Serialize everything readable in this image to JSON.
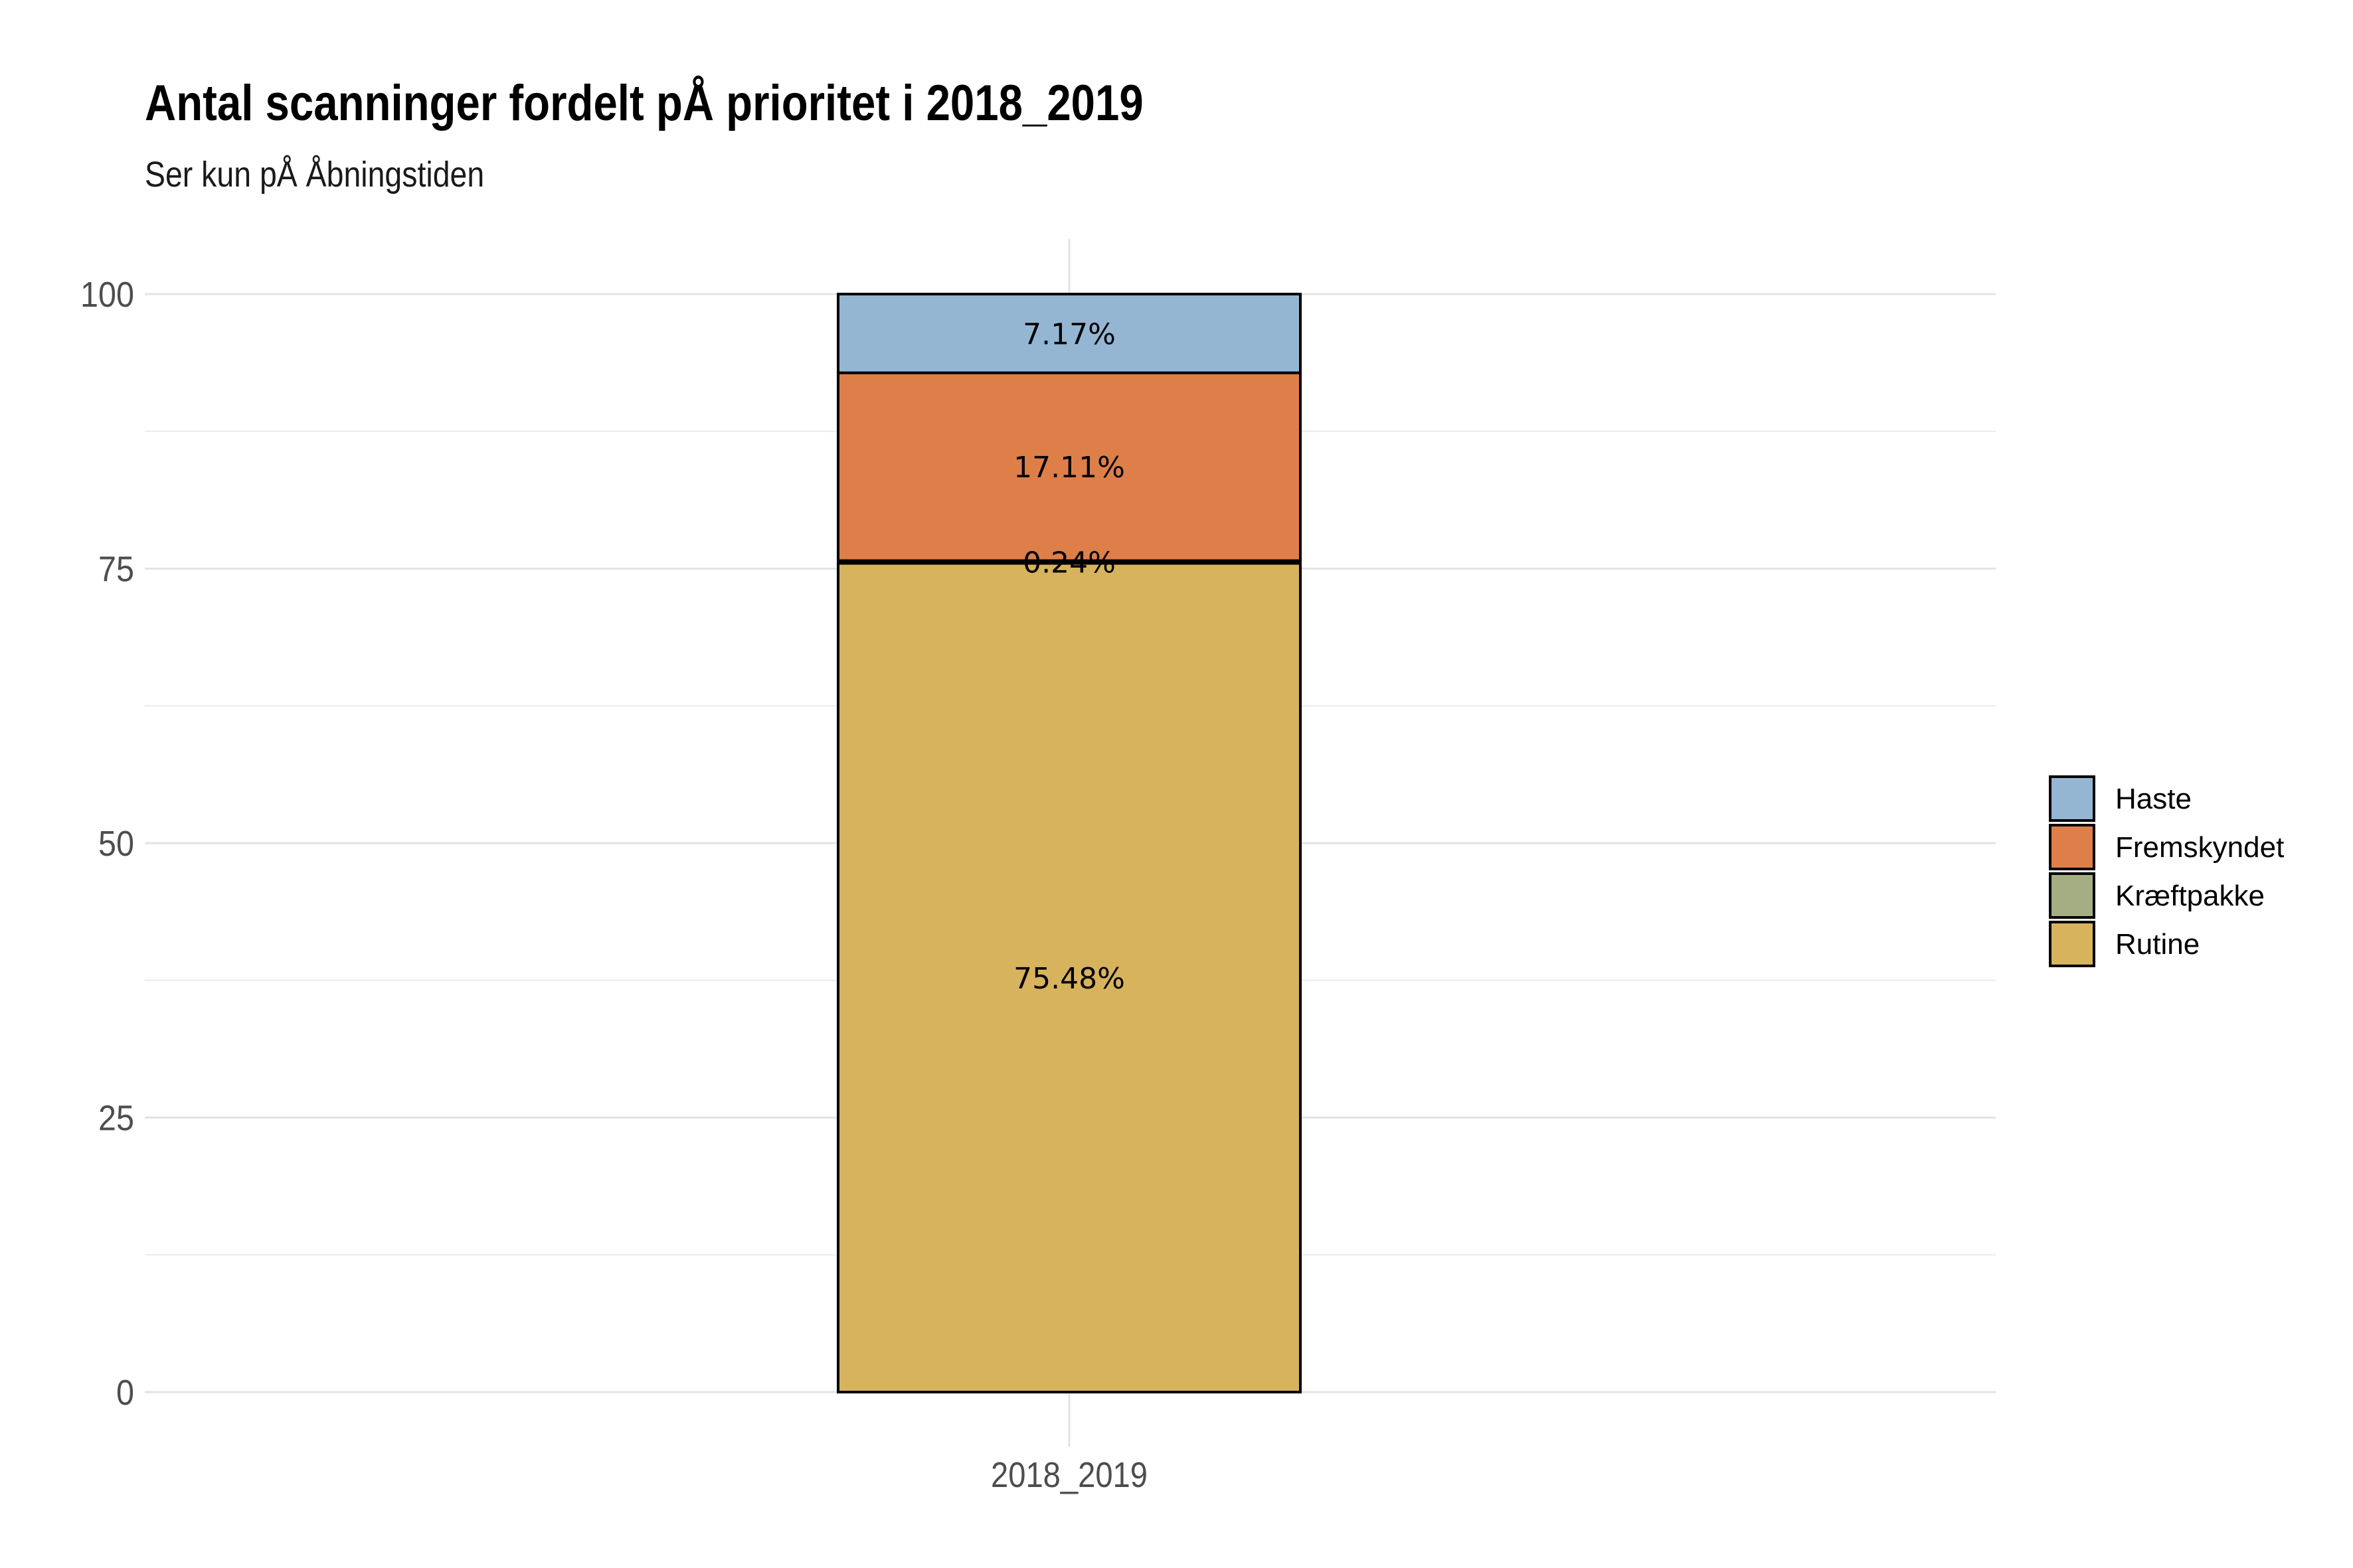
{
  "chart_data": {
    "type": "bar",
    "stacked": true,
    "title": "Antal scanninger fordelt pÅ prioritet i 2018_2019",
    "subtitle": "Ser kun pÅ Åbningstiden",
    "xlabel": "",
    "ylabel": "",
    "categories": [
      "2018_2019"
    ],
    "ylim": [
      0,
      100
    ],
    "yticks": [
      0,
      25,
      50,
      75,
      100
    ],
    "grid": true,
    "legend_position": "right",
    "series": [
      {
        "name": "Rutine",
        "values": [
          75.48
        ],
        "label": "75.48%",
        "color": "#D8B35E"
      },
      {
        "name": "Kræftpakke",
        "values": [
          0.24
        ],
        "label": "0.24%",
        "color": "#A5AE83"
      },
      {
        "name": "Fremskyndet",
        "values": [
          17.11
        ],
        "label": "17.11%",
        "color": "#DE7F49"
      },
      {
        "name": "Haste",
        "values": [
          7.17
        ],
        "label": "7.17%",
        "color": "#94B6D2"
      }
    ],
    "legend_order": [
      "Haste",
      "Fremskyndet",
      "Kræftpakke",
      "Rutine"
    ]
  }
}
